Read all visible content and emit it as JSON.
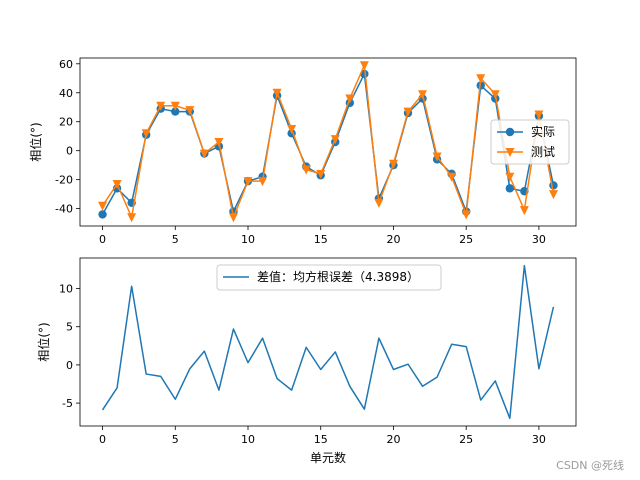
{
  "chart_data": [
    {
      "type": "line",
      "ylabel": "相位(°)",
      "xlabel": "",
      "xlim": [
        -1.55,
        32.55
      ],
      "ylim": [
        -52,
        64
      ],
      "xticks": [
        0,
        5,
        10,
        15,
        20,
        25,
        30
      ],
      "yticks": [
        -40,
        -20,
        0,
        20,
        40,
        60
      ],
      "legend_position": "center-right",
      "x": [
        0,
        1,
        2,
        3,
        4,
        5,
        6,
        7,
        8,
        9,
        10,
        11,
        12,
        13,
        14,
        15,
        16,
        17,
        18,
        19,
        20,
        21,
        22,
        23,
        24,
        25,
        26,
        27,
        28,
        29,
        30,
        31
      ],
      "series": [
        {
          "name": "实际",
          "marker": "circle",
          "color": "#1f77b4",
          "values": [
            -44,
            -26,
            -36,
            11,
            29,
            27,
            27,
            -2,
            3,
            -42,
            -21,
            -18,
            38,
            12,
            -11,
            -17,
            6,
            33,
            53,
            -33,
            -10,
            26,
            36,
            -6,
            -16,
            -42,
            45,
            36,
            -26,
            -28,
            24,
            -24
          ]
        },
        {
          "name": "测试",
          "marker": "triangle-down",
          "color": "#ff7f0e",
          "values": [
            -38,
            -23,
            -46,
            12,
            31,
            31,
            28,
            -2,
            6,
            -46,
            -21,
            -21,
            40,
            15,
            -13,
            -16,
            8,
            36,
            59,
            -36,
            -9,
            27,
            39,
            -4,
            -18,
            -44,
            50,
            39,
            -18,
            -41,
            25,
            -30
          ]
        }
      ]
    },
    {
      "type": "line",
      "ylabel": "相位(°)",
      "xlabel": "单元数",
      "xlim": [
        -1.55,
        32.55
      ],
      "ylim": [
        -8,
        14
      ],
      "xticks": [
        0,
        5,
        10,
        15,
        20,
        25,
        30
      ],
      "yticks": [
        -5,
        0,
        5,
        10
      ],
      "legend_position": "top-center",
      "x": [
        0,
        1,
        2,
        3,
        4,
        5,
        6,
        7,
        8,
        9,
        10,
        11,
        12,
        13,
        14,
        15,
        16,
        17,
        18,
        19,
        20,
        21,
        22,
        23,
        24,
        25,
        26,
        27,
        28,
        29,
        30,
        31
      ],
      "series": [
        {
          "name": "差值：均方根误差（4.3898）",
          "color": "#1f77b4",
          "values": [
            -5.9,
            -3.0,
            10.3,
            -1.2,
            -1.5,
            -4.5,
            -0.5,
            1.8,
            -3.3,
            4.7,
            0.3,
            3.5,
            -1.8,
            -3.3,
            2.3,
            -0.6,
            1.7,
            -2.8,
            -5.8,
            3.5,
            -0.6,
            0.1,
            -2.8,
            -1.6,
            2.7,
            2.4,
            -4.6,
            -2.1,
            -7.0,
            13.0,
            -0.5,
            7.6
          ]
        }
      ]
    }
  ],
  "watermark": "CSDN @死线"
}
